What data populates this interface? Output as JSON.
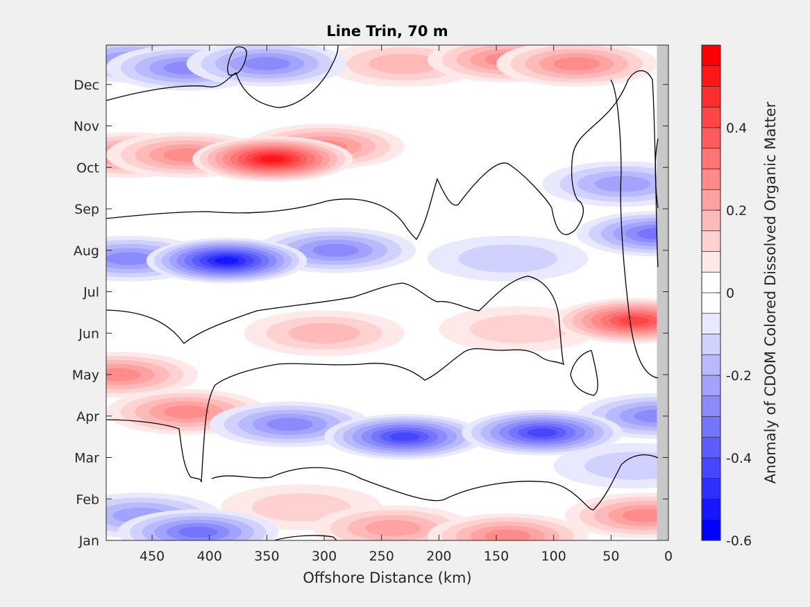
{
  "chart_data": {
    "type": "heatmap",
    "title": "Line Trin, 70 m",
    "xlabel": "Offshore Distance (km)",
    "ylabel": "",
    "colorbar_label": "Anomaly of CDOM Colored Dissolved Organic Matter",
    "x_ticks": [
      450,
      400,
      350,
      300,
      250,
      200,
      150,
      100,
      50,
      0
    ],
    "x_range": [
      490,
      0
    ],
    "x_reversed": true,
    "y_ticks": [
      "Jan",
      "Feb",
      "Mar",
      "Apr",
      "May",
      "Jun",
      "Jul",
      "Aug",
      "Sep",
      "Oct",
      "Nov",
      "Dec"
    ],
    "y_tick_months": [
      1,
      2,
      3,
      4,
      5,
      6,
      7,
      8,
      9,
      10,
      11,
      12
    ],
    "y_range": [
      1,
      12.95
    ],
    "colorbar_ticks": [
      0.4,
      0.2,
      0,
      -0.2,
      -0.4,
      -0.6
    ],
    "colorbar_range": [
      -0.6,
      0.6
    ],
    "contour_levels_step": 0.05,
    "zero_contour": true,
    "no_data_strip_km": [
      10,
      0
    ],
    "colors": {
      "negative_max": "#0000ff",
      "positive_max": "#ff0000",
      "zero": "#ffffff",
      "no_data": "#c8c8c8",
      "contour_line": "#000000"
    },
    "features": [
      {
        "x_km": 345,
        "month": 10.2,
        "value": 0.52
      },
      {
        "x_km": 420,
        "month": 10.3,
        "value": 0.3
      },
      {
        "x_km": 470,
        "month": 10.3,
        "value": 0.25
      },
      {
        "x_km": 300,
        "month": 10.5,
        "value": 0.25
      },
      {
        "x_km": 80,
        "month": 12.5,
        "value": 0.3
      },
      {
        "x_km": 140,
        "month": 12.6,
        "value": 0.25
      },
      {
        "x_km": 230,
        "month": 12.5,
        "value": 0.18
      },
      {
        "x_km": 30,
        "month": 6.3,
        "value": 0.4
      },
      {
        "x_km": 300,
        "month": 6.0,
        "value": 0.18
      },
      {
        "x_km": 130,
        "month": 6.1,
        "value": 0.12
      },
      {
        "x_km": 480,
        "month": 5.0,
        "value": 0.28
      },
      {
        "x_km": 420,
        "month": 4.1,
        "value": 0.3
      },
      {
        "x_km": 140,
        "month": 1.1,
        "value": 0.3
      },
      {
        "x_km": 240,
        "month": 1.3,
        "value": 0.2
      },
      {
        "x_km": 20,
        "month": 1.6,
        "value": 0.3
      },
      {
        "x_km": 320,
        "month": 1.8,
        "value": 0.1
      },
      {
        "x_km": 385,
        "month": 7.75,
        "value": -0.52
      },
      {
        "x_km": 470,
        "month": 7.8,
        "value": -0.28
      },
      {
        "x_km": 290,
        "month": 8.0,
        "value": -0.3
      },
      {
        "x_km": 230,
        "month": 3.5,
        "value": -0.4
      },
      {
        "x_km": 110,
        "month": 3.6,
        "value": -0.42
      },
      {
        "x_km": 330,
        "month": 3.8,
        "value": -0.3
      },
      {
        "x_km": 10,
        "month": 8.4,
        "value": -0.35
      },
      {
        "x_km": 10,
        "month": 4.0,
        "value": -0.3
      },
      {
        "x_km": 350,
        "month": 12.5,
        "value": -0.3
      },
      {
        "x_km": 420,
        "month": 12.4,
        "value": -0.25
      },
      {
        "x_km": 470,
        "month": 12.6,
        "value": -0.2
      },
      {
        "x_km": 410,
        "month": 1.2,
        "value": -0.35
      },
      {
        "x_km": 460,
        "month": 1.6,
        "value": -0.22
      },
      {
        "x_km": 140,
        "month": 7.8,
        "value": -0.15
      },
      {
        "x_km": 40,
        "month": 9.6,
        "value": -0.2
      },
      {
        "x_km": 30,
        "month": 2.8,
        "value": -0.15
      }
    ]
  }
}
